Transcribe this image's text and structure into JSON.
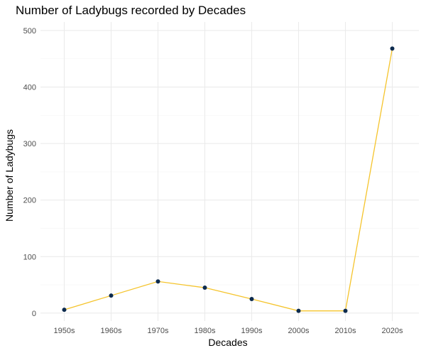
{
  "chart_data": {
    "type": "line",
    "title": "Number of Ladybugs recorded by Decades",
    "xlabel": "Decades",
    "ylabel": "Number of Ladybugs",
    "categories": [
      "1950s",
      "1960s",
      "1970s",
      "1980s",
      "1990s",
      "2000s",
      "2010s",
      "2020s"
    ],
    "values": [
      6,
      31,
      56,
      45,
      25,
      4,
      4,
      468
    ],
    "ylim": [
      -14,
      515
    ],
    "yticks": [
      0,
      100,
      200,
      300,
      400,
      500
    ],
    "yminor": [
      50,
      150,
      250,
      350,
      450
    ],
    "grid": true,
    "legend": "none",
    "colors": {
      "line": "#F5C42C",
      "point": "#0D2B4E"
    }
  }
}
